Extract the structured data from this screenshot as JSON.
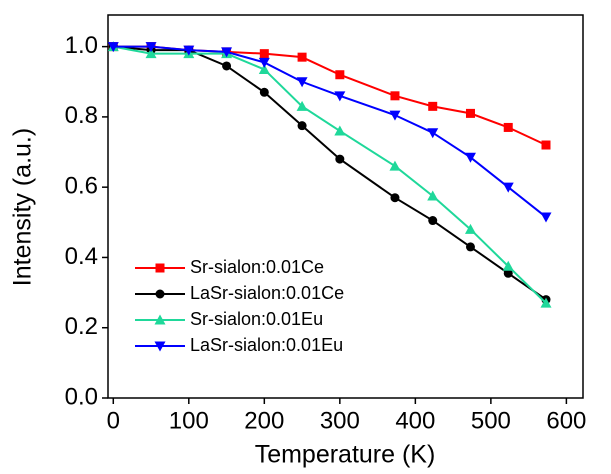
{
  "chart_data": {
    "type": "line",
    "x_label": "Temperature (K)",
    "y_label": "Intensity (a.u.)",
    "x": [
      0,
      50,
      100,
      150,
      200,
      250,
      300,
      373,
      423,
      473,
      523,
      573
    ],
    "series": [
      {
        "name": "Sr-sialon:0.01Ce",
        "color": "#ff0000",
        "marker": "square",
        "values": [
          1.0,
          1.0,
          0.99,
          0.985,
          0.98,
          0.97,
          0.92,
          0.86,
          0.83,
          0.81,
          0.77,
          0.72
        ]
      },
      {
        "name": "LaSr-sialon:0.01Ce",
        "color": "#000000",
        "marker": "circle",
        "values": [
          1.0,
          0.99,
          0.99,
          0.945,
          0.87,
          0.775,
          0.68,
          0.57,
          0.505,
          0.43,
          0.355,
          0.28
        ]
      },
      {
        "name": "Sr-sialon:0.01Eu",
        "color": "#1fd89a",
        "marker": "triangle-up",
        "values": [
          1.0,
          0.98,
          0.98,
          0.98,
          0.935,
          0.83,
          0.76,
          0.66,
          0.575,
          0.48,
          0.375,
          0.27
        ]
      },
      {
        "name": "LaSr-sialon:0.01Eu",
        "color": "#0000ff",
        "marker": "triangle-down",
        "values": [
          1.0,
          1.0,
          0.99,
          0.985,
          0.955,
          0.9,
          0.86,
          0.805,
          0.755,
          0.685,
          0.6,
          0.515
        ]
      }
    ],
    "xlim": [
      -7,
      622
    ],
    "ylim": [
      0,
      1.09
    ],
    "xticks": [
      0,
      100,
      200,
      300,
      400,
      500,
      600
    ],
    "yticks": [
      {
        "value": 0,
        "label": "0.0"
      },
      {
        "value": 0.2,
        "label": "0.2"
      },
      {
        "value": 0.4,
        "label": "0.4"
      },
      {
        "value": 0.6,
        "label": "0.6"
      },
      {
        "value": 0.8,
        "label": "0.8"
      },
      {
        "value": 1.0,
        "label": "1.0"
      }
    ],
    "legend": "lower-left"
  }
}
